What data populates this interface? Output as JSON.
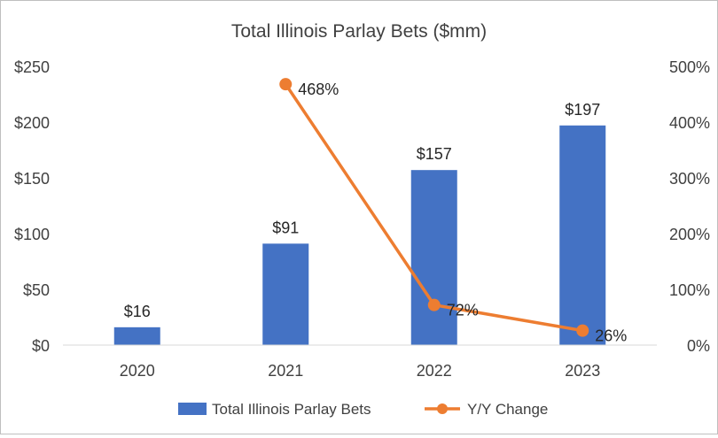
{
  "chart_data": {
    "type": "bar",
    "title": "Total Illinois Parlay Bets ($mm)",
    "categories": [
      "2020",
      "2021",
      "2022",
      "2023"
    ],
    "series": [
      {
        "name": "Total Illinois Parlay Bets",
        "kind": "bar",
        "axis": "left",
        "color": "#4472c4",
        "values": [
          16,
          91,
          157,
          197
        ],
        "labels": [
          "$16",
          "$91",
          "$157",
          "$197"
        ]
      },
      {
        "name": "Y/Y Change",
        "kind": "line",
        "axis": "right",
        "color": "#ed7d31",
        "values": [
          null,
          468,
          72,
          26
        ],
        "labels": [
          "",
          "468%",
          "72%",
          "26%"
        ]
      }
    ],
    "left_axis": {
      "ylim": [
        0,
        250
      ],
      "ticks": [
        "$0",
        "$50",
        "$100",
        "$150",
        "$200",
        "$250"
      ]
    },
    "right_axis": {
      "ylim": [
        0,
        500
      ],
      "ticks": [
        "0%",
        "100%",
        "200%",
        "300%",
        "400%",
        "500%"
      ]
    },
    "grid": false,
    "legend_position": "bottom"
  }
}
